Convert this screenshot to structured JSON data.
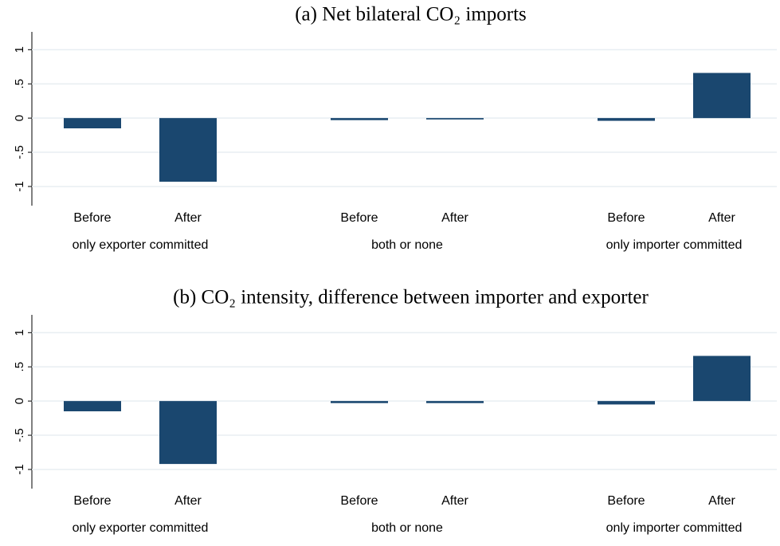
{
  "chart_data": [
    {
      "type": "bar",
      "title": "(a) Net bilateral CO₂ imports",
      "categories": [
        "Before",
        "After",
        "Before",
        "After",
        "Before",
        "After"
      ],
      "groups": [
        "only exporter committed",
        "both or none",
        "only importer committed"
      ],
      "values": [
        -0.15,
        -0.93,
        -0.03,
        -0.02,
        -0.04,
        0.66
      ],
      "color": "#1a476f",
      "ylim": [
        -1.28,
        1.26
      ],
      "yticks": [
        {
          "value": -1,
          "label": "-1"
        },
        {
          "value": -0.5,
          "label": "-.5"
        },
        0,
        {
          "value": 0.5,
          "label": ".5"
        },
        1
      ],
      "grid": true
    },
    {
      "type": "bar",
      "title": "(b) CO₂ intensity, difference between importer and exporter",
      "categories": [
        "Before",
        "After",
        "Before",
        "After",
        "Before",
        "After"
      ],
      "groups": [
        "only exporter committed",
        "both or none",
        "only importer committed"
      ],
      "values": [
        -0.15,
        -0.92,
        -0.03,
        -0.03,
        -0.05,
        0.66
      ],
      "color": "#1a476f",
      "ylim": [
        -1.28,
        1.26
      ],
      "yticks": [
        {
          "value": -1,
          "label": "-1"
        },
        {
          "value": -0.5,
          "label": "-.5"
        },
        0,
        {
          "value": 0.5,
          "label": ".5"
        },
        1
      ],
      "grid": true
    }
  ]
}
